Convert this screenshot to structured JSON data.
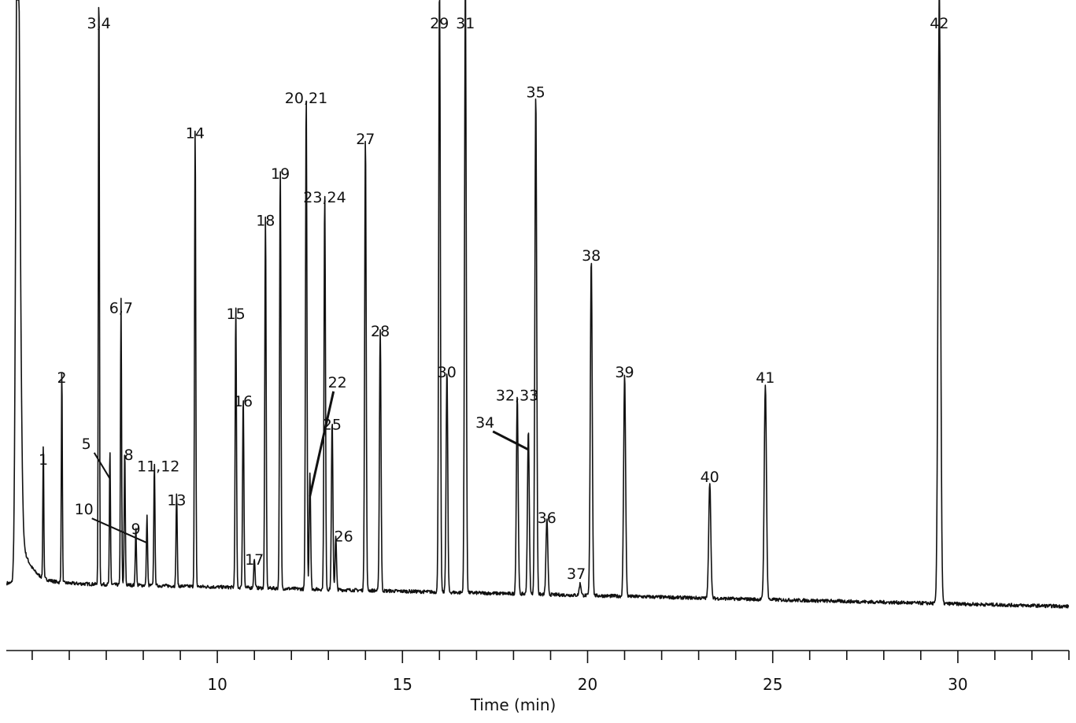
{
  "chart_data": {
    "type": "line",
    "title": "",
    "xlabel": "Time (min)",
    "ylabel": "",
    "xlim": [
      4.3,
      33.0
    ],
    "x_ticks": [
      10,
      15,
      20,
      25,
      30
    ],
    "x_minor_tick_step": 1,
    "grid": false,
    "legend": "none",
    "line_color": "#111111",
    "baseline": {
      "start_time": 5.4,
      "start_level": 0.04,
      "end_time": 33.0,
      "end_level": 0.0
    },
    "solvent_peak": {
      "time": 4.6,
      "label": ""
    },
    "peaks": [
      {
        "label": "1",
        "time": 5.3,
        "height": 0.23
      },
      {
        "label": "2",
        "time": 5.8,
        "height": 0.37
      },
      {
        "label": "3,4",
        "time": 6.8,
        "height": 1.05
      },
      {
        "label": "5",
        "time": 7.1,
        "height": 0.23
      },
      {
        "label": "6,7",
        "time": 7.4,
        "height": 0.49
      },
      {
        "label": "8",
        "time": 7.5,
        "height": 0.23
      },
      {
        "label": "9",
        "time": 7.8,
        "height": 0.1
      },
      {
        "label": "10",
        "time": 8.1,
        "height": 0.12
      },
      {
        "label": "11,12",
        "time": 8.3,
        "height": 0.21
      },
      {
        "label": "13",
        "time": 8.9,
        "height": 0.16
      },
      {
        "label": "14",
        "time": 9.4,
        "height": 0.79
      },
      {
        "label": "15",
        "time": 10.5,
        "height": 0.48
      },
      {
        "label": "16",
        "time": 10.7,
        "height": 0.33
      },
      {
        "label": "17",
        "time": 11.0,
        "height": 0.05
      },
      {
        "label": "18",
        "time": 11.3,
        "height": 0.64
      },
      {
        "label": "19",
        "time": 11.7,
        "height": 0.72
      },
      {
        "label": "20,21",
        "time": 12.4,
        "height": 0.85
      },
      {
        "label": "22",
        "time": 12.5,
        "height": 0.2
      },
      {
        "label": "23,24",
        "time": 12.9,
        "height": 0.68
      },
      {
        "label": "25",
        "time": 13.1,
        "height": 0.29
      },
      {
        "label": "26",
        "time": 13.2,
        "height": 0.09
      },
      {
        "label": "27",
        "time": 14.0,
        "height": 0.78
      },
      {
        "label": "28",
        "time": 14.4,
        "height": 0.45
      },
      {
        "label": "29",
        "time": 16.0,
        "height": 1.05
      },
      {
        "label": "30",
        "time": 16.2,
        "height": 0.38
      },
      {
        "label": "31",
        "time": 16.7,
        "height": 1.05
      },
      {
        "label": "32,33",
        "time": 18.1,
        "height": 0.34
      },
      {
        "label": "34",
        "time": 18.4,
        "height": 0.28
      },
      {
        "label": "35",
        "time": 18.6,
        "height": 0.86
      },
      {
        "label": "36",
        "time": 18.9,
        "height": 0.13
      },
      {
        "label": "37",
        "time": 19.8,
        "height": 0.02
      },
      {
        "label": "38",
        "time": 20.1,
        "height": 0.58
      },
      {
        "label": "39",
        "time": 21.0,
        "height": 0.38
      },
      {
        "label": "40",
        "time": 23.3,
        "height": 0.2
      },
      {
        "label": "41",
        "time": 24.8,
        "height": 0.37
      },
      {
        "label": "42",
        "time": 29.5,
        "height": 1.05
      }
    ]
  }
}
